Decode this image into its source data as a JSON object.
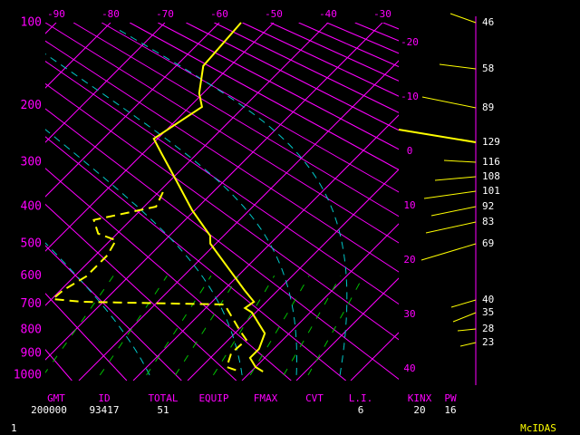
{
  "chart_data": {
    "type": "skewt",
    "pressure_ticks": [
      100,
      200,
      300,
      400,
      500,
      600,
      700,
      800,
      900,
      1000
    ],
    "temp_ticks_top": [
      -90,
      -80,
      -70,
      -60,
      -50,
      -40,
      -30
    ],
    "temp_ticks_right": [
      -20,
      -10,
      0,
      10,
      20,
      30,
      40
    ],
    "temperature": {
      "color": "#ffff00",
      "pressure": [
        100,
        146,
        182,
        202,
        255,
        283,
        340,
        409,
        477,
        500,
        587,
        649,
        691,
        714,
        731,
        814,
        880,
        920,
        962,
        983
      ],
      "values": [
        -56,
        -55,
        -50.7,
        -47.7,
        -50.7,
        -46.5,
        -38.7,
        -30.5,
        -22.5,
        -21,
        -12,
        -6.2,
        -2.3,
        -2.8,
        -0.7,
        5.5,
        7.3,
        7.3,
        10,
        12.2
      ]
    },
    "dewpoint": {
      "color": "#ffff00",
      "pressure": [
        365,
        400,
        434,
        471,
        490,
        535,
        602,
        649,
        681,
        691,
        701,
        804,
        841,
        900,
        962,
        983
      ],
      "values": [
        -39.2,
        -37.8,
        -46.8,
        -43.5,
        -39,
        -37.8,
        -37.8,
        -39.5,
        -39.8,
        -34,
        -7.2,
        0.5,
        3.3,
        3,
        4.7,
        8
      ]
    },
    "wind_labels": [
      46,
      58,
      89,
      129,
      116,
      108,
      101,
      92,
      83,
      69,
      40,
      35,
      28,
      23
    ],
    "table": [
      {
        "header": "GMT",
        "value": 200000
      },
      {
        "header": "ID",
        "value": 93417
      },
      {
        "header": "TOTAL",
        "value": 51
      },
      {
        "header": "EQUIP"
      },
      {
        "header": "FMAX"
      },
      {
        "header": "CVT"
      },
      {
        "header": "L.I.",
        "value": 6
      },
      {
        "header": "KINX",
        "value": 20
      },
      {
        "header": "PW",
        "value": 16
      }
    ],
    "footer_left": "1",
    "footer_right": "McIDAS"
  }
}
